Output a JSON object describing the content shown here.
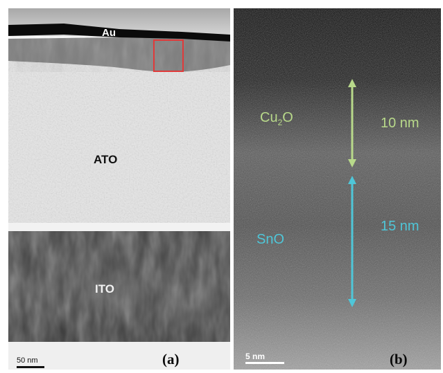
{
  "panel_a": {
    "label": "(a)",
    "layers": {
      "top": "Au",
      "middle": "ATO",
      "bottom": "ITO"
    },
    "scale_bar": "50 nm",
    "highlight_color": "#e03a3a"
  },
  "panel_b": {
    "label": "(b)",
    "layers": [
      {
        "formula": "Cu",
        "subscript": "2",
        "suffix": "O",
        "thickness": "10 nm",
        "color": "#b8d98a"
      },
      {
        "formula": "SnO",
        "thickness": "15 nm",
        "color": "#4fc6d8"
      }
    ],
    "scale_bar": "5 nm"
  }
}
